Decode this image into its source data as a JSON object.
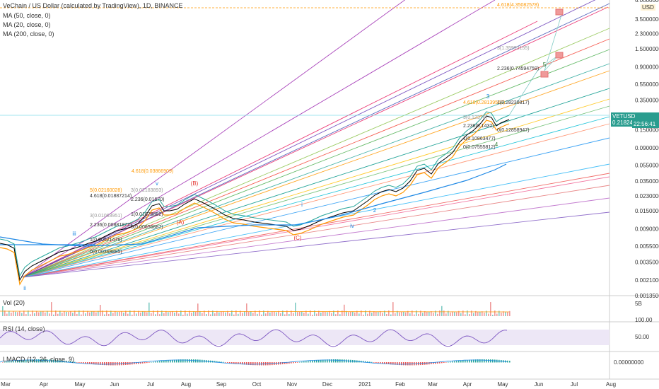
{
  "header": {
    "title": "VeChain / US Dollar (calculated by TradingView), 1D, BINANCE",
    "ma_lines": [
      "MA (50, close, 0)",
      "MA (20, close, 0)",
      "MA (200, close, 0)"
    ]
  },
  "price_tag": {
    "symbol": "VETUSD",
    "value": "0.21824710",
    "time": "22:56:41"
  },
  "top_right_label": "USD",
  "panes": {
    "vol": {
      "label": "Vol (20)",
      "scale": "5B"
    },
    "rsi": {
      "label": "RSI (14, close)",
      "scale_high": "100.00",
      "scale_mid": "50.00"
    },
    "macd": {
      "label": "LMACD (12, 26, close, 9)",
      "scale": "0.00000000"
    }
  },
  "chart_data": {
    "type": "line",
    "yscale": "log",
    "ylim": [
      0.0013,
      6.0
    ],
    "y_ticks": [
      "6.00000000",
      "3.50000000",
      "2.30000000",
      "1.50000000",
      "0.90000000",
      "0.55000000",
      "0.35000000",
      "0.15000000",
      "0.09000000",
      "0.05500000",
      "0.03500000",
      "0.02300000",
      "0.01500000",
      "0.00900000",
      "0.00550000",
      "0.00350000",
      "0.00210000",
      "0.00135000"
    ],
    "x_ticks": [
      "Mar",
      "Apr",
      "May",
      "Jun",
      "Jul",
      "Aug",
      "Sep",
      "Oct",
      "Nov",
      "Dec",
      "2021",
      "Feb",
      "Mar",
      "Apr",
      "May",
      "Jun",
      "Jul",
      "Aug"
    ],
    "fib_labels": [
      "4.618(4.35082578)",
      "3(1.35992155)",
      "2.236(0.74594759)",
      "4.618(0.28139561)",
      "1(0.28230817)",
      "3(0.12376)",
      "2.236(0.1432)",
      "0(0.12858947)",
      "1(0.10863477)",
      "0(0.07555812)",
      "4.618(0.03866909)",
      "5(0.02160028)",
      "4.618(0.01887214)",
      "3(0.02183893)",
      "2.236(0.01670)",
      "3(0.01063951)",
      "1(0.01078882)",
      "2.236(0.00881872)",
      "0(0.00656887)",
      "1(0.00521476)",
      "0(0.00368885)"
    ],
    "wave_labels": [
      "(A)",
      "(B)",
      "(C)",
      "i",
      "ii",
      "iii",
      "iv",
      "v",
      "3",
      "4",
      "5",
      "2"
    ]
  }
}
